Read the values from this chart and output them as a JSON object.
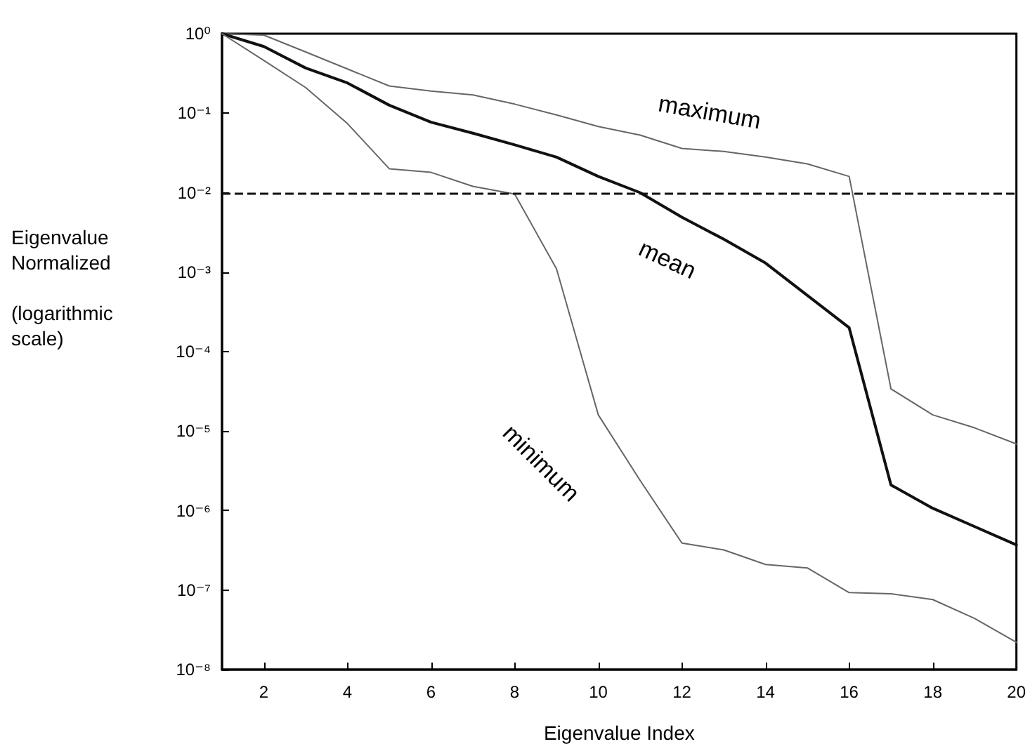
{
  "chart_data": {
    "type": "line",
    "xlabel": "Eigenvalue Index",
    "ylabel": "Eigenvalue\nNormalized\n\n(logarithmic\nscale)",
    "x": [
      1,
      2,
      3,
      4,
      5,
      6,
      7,
      8,
      9,
      10,
      11,
      12,
      13,
      14,
      15,
      16,
      17,
      18,
      19,
      20
    ],
    "series": [
      {
        "color": "#666666",
        "values": [
          1,
          0.96,
          0.59,
          0.36,
          0.22,
          0.19,
          0.17,
          0.13,
          0.095,
          0.068,
          0.053,
          0.036,
          0.033,
          0.028,
          0.023,
          0.016,
          3.4e-05,
          1.6e-05,
          1.1e-05,
          6.9e-06
        ]
      },
      {
        "color": "#111111",
        "values": [
          1,
          0.69,
          0.37,
          0.24,
          0.126,
          0.077,
          0.056,
          0.04,
          0.028,
          0.016,
          0.01,
          0.0049,
          0.0026,
          0.0013,
          0.00051,
          0.0002,
          2.1e-06,
          1.07e-06,
          6.3e-07,
          3.7e-07
        ]
      },
      {
        "color": "#666666",
        "values": [
          1,
          0.46,
          0.21,
          0.074,
          0.02,
          0.018,
          0.012,
          0.0096,
          0.0011,
          1.6e-05,
          2.4e-06,
          3.9e-07,
          3.2e-07,
          2.1e-07,
          1.9e-07,
          9.3e-08,
          9e-08,
          7.6e-08,
          4.4e-08,
          2.2e-08
        ]
      }
    ],
    "log": "y",
    "xlim": [
      1,
      20
    ],
    "xticks": [
      2,
      4,
      6,
      8,
      10,
      12,
      14,
      16,
      18,
      20
    ],
    "ylim": [
      1e-08,
      1
    ],
    "yticks": [
      {
        "value": 1e-08,
        "label": "10⁻⁸"
      },
      {
        "value": 1e-07,
        "label": "10⁻⁷"
      },
      {
        "value": 1e-06,
        "label": "10⁻⁶"
      },
      {
        "value": 1e-05,
        "label": "10⁻⁵"
      },
      {
        "value": 0.0001,
        "label": "10⁻⁴"
      },
      {
        "value": 0.001,
        "label": "10⁻³"
      },
      {
        "value": 0.01,
        "label": "10⁻²"
      },
      {
        "value": 0.1,
        "label": "10⁻¹"
      },
      {
        "value": 1,
        "label": "10⁰"
      }
    ],
    "ref_lines": [
      {
        "axis": "y",
        "value": 0.01,
        "line_style": "dashed",
        "color": "#111111"
      }
    ],
    "annotations": [
      "maximum",
      "mean",
      "minimum"
    ],
    "grid": false,
    "marker": "none",
    "line_style": "solid"
  }
}
